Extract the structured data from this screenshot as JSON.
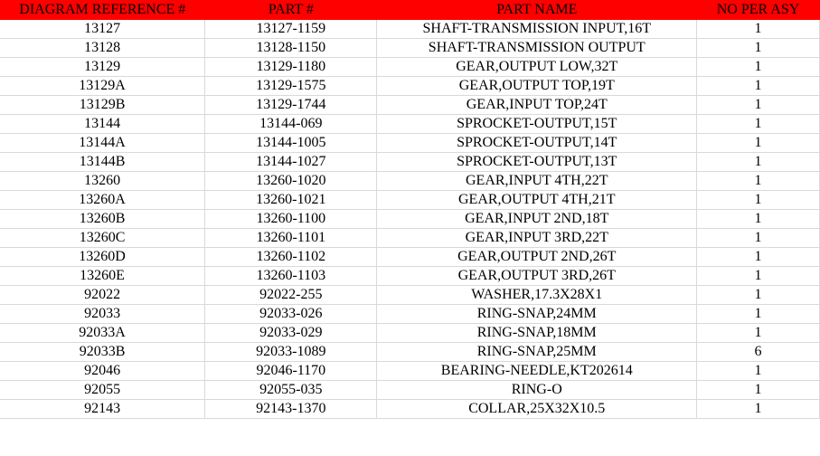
{
  "table": {
    "columns": [
      {
        "label": "DIAGRAM REFERENCE #",
        "key": "ref",
        "width": "25%"
      },
      {
        "label": "PART #",
        "key": "part",
        "width": "21%"
      },
      {
        "label": "PART NAME",
        "key": "name",
        "width": "39%"
      },
      {
        "label": "NO PER ASY",
        "key": "qty",
        "width": "15%"
      }
    ],
    "rows": [
      {
        "ref": "13127",
        "part": "13127-1159",
        "name": "SHAFT-TRANSMISSION INPUT,16T",
        "qty": "1"
      },
      {
        "ref": "13128",
        "part": "13128-1150",
        "name": "SHAFT-TRANSMISSION OUTPUT",
        "qty": "1"
      },
      {
        "ref": "13129",
        "part": "13129-1180",
        "name": "GEAR,OUTPUT LOW,32T",
        "qty": "1"
      },
      {
        "ref": "13129A",
        "part": "13129-1575",
        "name": "GEAR,OUTPUT TOP,19T",
        "qty": "1"
      },
      {
        "ref": "13129B",
        "part": "13129-1744",
        "name": "GEAR,INPUT TOP,24T",
        "qty": "1"
      },
      {
        "ref": "13144",
        "part": "13144-069",
        "name": "SPROCKET-OUTPUT,15T",
        "qty": "1"
      },
      {
        "ref": "13144A",
        "part": "13144-1005",
        "name": "SPROCKET-OUTPUT,14T",
        "qty": "1"
      },
      {
        "ref": "13144B",
        "part": "13144-1027",
        "name": "SPROCKET-OUTPUT,13T",
        "qty": "1"
      },
      {
        "ref": "13260",
        "part": "13260-1020",
        "name": "GEAR,INPUT 4TH,22T",
        "qty": "1"
      },
      {
        "ref": "13260A",
        "part": "13260-1021",
        "name": "GEAR,OUTPUT 4TH,21T",
        "qty": "1"
      },
      {
        "ref": "13260B",
        "part": "13260-1100",
        "name": "GEAR,INPUT 2ND,18T",
        "qty": "1"
      },
      {
        "ref": "13260C",
        "part": "13260-1101",
        "name": "GEAR,INPUT 3RD,22T",
        "qty": "1"
      },
      {
        "ref": "13260D",
        "part": "13260-1102",
        "name": "GEAR,OUTPUT 2ND,26T",
        "qty": "1"
      },
      {
        "ref": "13260E",
        "part": "13260-1103",
        "name": "GEAR,OUTPUT 3RD,26T",
        "qty": "1"
      },
      {
        "ref": "92022",
        "part": "92022-255",
        "name": "WASHER,17.3X28X1",
        "qty": "1"
      },
      {
        "ref": "92033",
        "part": "92033-026",
        "name": "RING-SNAP,24MM",
        "qty": "1"
      },
      {
        "ref": "92033A",
        "part": "92033-029",
        "name": "RING-SNAP,18MM",
        "qty": "1"
      },
      {
        "ref": "92033B",
        "part": "92033-1089",
        "name": "RING-SNAP,25MM",
        "qty": "6"
      },
      {
        "ref": "92046",
        "part": "92046-1170",
        "name": "BEARING-NEEDLE,KT202614",
        "qty": "1"
      },
      {
        "ref": "92055",
        "part": "92055-035",
        "name": "RING-O",
        "qty": "1"
      },
      {
        "ref": "92143",
        "part": "92143-1370",
        "name": "COLLAR,25X32X10.5",
        "qty": "1"
      }
    ],
    "header_bg_color": "#ff0000",
    "header_text_color": "#000000",
    "row_border_color": "#d9d9d9",
    "font_family": "Times New Roman",
    "font_size": 16
  }
}
